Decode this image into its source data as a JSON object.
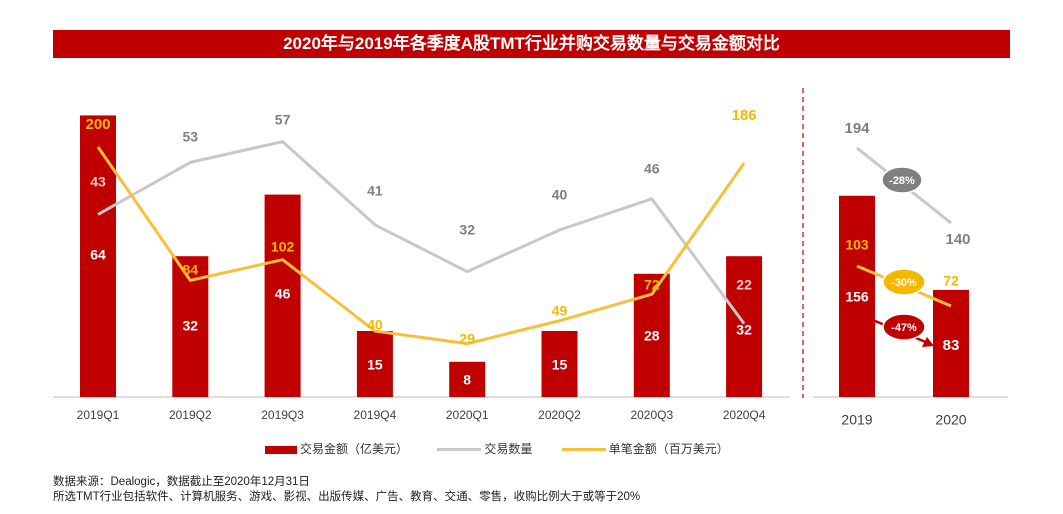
{
  "title": "2020年与2019年各季度A股TMT行业并购交易数量与交易金额对比",
  "colors": {
    "accent": "#c00000",
    "bar": "#c00000",
    "count_line": "#c8c8c8",
    "avg_line": "#f8c03a",
    "avg_label": "#f5b800"
  },
  "chart_data": [
    {
      "type": "bar+line",
      "title": "2020年与2019年各季度A股TMT行业并购交易数量与交易金额对比",
      "categories": [
        "2019Q1",
        "2019Q2",
        "2019Q3",
        "2019Q4",
        "2020Q1",
        "2020Q2",
        "2020Q3",
        "2020Q4"
      ],
      "series": [
        {
          "name": "交易金额（亿美元）",
          "type": "bar",
          "values": [
            64,
            32,
            46,
            15,
            8,
            15,
            28,
            32
          ]
        },
        {
          "name": "交易数量",
          "type": "line",
          "values": [
            43,
            53,
            57,
            41,
            32,
            40,
            46,
            22
          ]
        },
        {
          "name": "单笔金额（百万美元）",
          "type": "line",
          "values": [
            200,
            84,
            102,
            40,
            29,
            49,
            72,
            186
          ]
        }
      ]
    },
    {
      "type": "bar+line",
      "categories": [
        "2019",
        "2020"
      ],
      "series": [
        {
          "name": "交易金额（亿美元）",
          "type": "bar",
          "values": [
            156,
            83
          ]
        },
        {
          "name": "交易数量",
          "type": "line",
          "values": [
            194,
            140
          ]
        },
        {
          "name": "单笔金额（百万美元）",
          "type": "line",
          "values": [
            103,
            72
          ]
        }
      ],
      "annotations": {
        "count_change": "-28%",
        "avg_change": "-30%",
        "amount_change": "-47%"
      }
    }
  ],
  "legend": {
    "amount": "交易金额（亿美元）",
    "count": "交易数量",
    "avg": "单笔金额（百万美元）"
  },
  "source": {
    "line1": "数据来源：Dealogic，数据截止至2020年12月31日",
    "line2": "所选TMT行业包括软件、计算机服务、游戏、影视、出版传媒、广告、教育、交通、零售，收购比例大于或等于20%"
  }
}
